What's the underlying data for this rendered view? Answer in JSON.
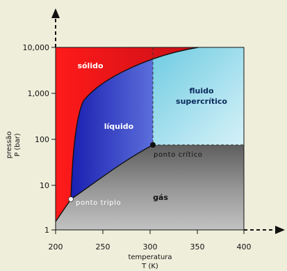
{
  "diagram": {
    "y_ticks": [
      "10,000",
      "1,000",
      "100",
      "10",
      "1"
    ],
    "x_ticks": [
      "200",
      "250",
      "300",
      "350",
      "400"
    ],
    "y_axis_title": [
      "pressão",
      "P (bar)"
    ],
    "x_axis_title": [
      "temperatura",
      "T (K)"
    ],
    "regions": {
      "solid": "sólido",
      "liquid": "líquido",
      "supercritical_line1": "fluido",
      "supercritical_line2": "supercrítico",
      "gas": "gás"
    },
    "points": {
      "triple": "ponto triplo",
      "critical": "ponto crítico"
    },
    "colors": {
      "background": "#eeeedb",
      "solid": "#e8141c",
      "liquid_dark": "#1a1fb0",
      "liquid_light": "#6f8cf0",
      "supercritical": "#43c0dc",
      "gas": "#a0a0a0"
    }
  }
}
